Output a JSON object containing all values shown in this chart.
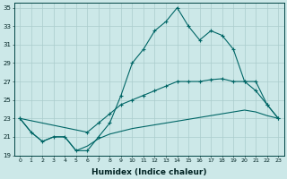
{
  "xlabel": "Humidex (Indice chaleur)",
  "bg_color": "#cce8e8",
  "grid_color": "#aacccc",
  "line_color": "#006666",
  "xlim": [
    -0.5,
    23.5
  ],
  "ylim": [
    19,
    35.5
  ],
  "yticks": [
    19,
    21,
    23,
    25,
    27,
    29,
    31,
    33,
    35
  ],
  "xticks": [
    0,
    1,
    2,
    3,
    4,
    5,
    6,
    7,
    8,
    9,
    10,
    11,
    12,
    13,
    14,
    15,
    16,
    17,
    18,
    19,
    20,
    21,
    22,
    23
  ],
  "line1_x": [
    0,
    1,
    2,
    3,
    4,
    5,
    6,
    7,
    8,
    9,
    10,
    11,
    12,
    13,
    14,
    15,
    16,
    17,
    18,
    19,
    20,
    21,
    22,
    23
  ],
  "line1_y": [
    23,
    21.5,
    20.5,
    21,
    21,
    19.5,
    19.5,
    21,
    22.5,
    25.5,
    29,
    30.5,
    32.5,
    33.5,
    35,
    33,
    31.5,
    32.5,
    32,
    30.5,
    27,
    27,
    24.5,
    23
  ],
  "line2_x": [
    0,
    6,
    7,
    8,
    9,
    10,
    11,
    12,
    13,
    14,
    15,
    16,
    17,
    18,
    19,
    20,
    21,
    22,
    23
  ],
  "line2_y": [
    23,
    21.5,
    22.5,
    23.5,
    24.5,
    25,
    25.5,
    26,
    26.5,
    27,
    27,
    27,
    27.2,
    27.3,
    27,
    27,
    26,
    24.5,
    23
  ],
  "line3_x": [
    0,
    1,
    2,
    3,
    4,
    5,
    6,
    7,
    8,
    9,
    10,
    11,
    12,
    13,
    14,
    15,
    16,
    17,
    18,
    19,
    20,
    21,
    22,
    23
  ],
  "line3_y": [
    23,
    21.5,
    20.5,
    21,
    21,
    19.5,
    20,
    20.8,
    21.3,
    21.6,
    21.9,
    22.1,
    22.3,
    22.5,
    22.7,
    22.9,
    23.1,
    23.3,
    23.5,
    23.7,
    23.9,
    23.7,
    23.3,
    23.0
  ]
}
